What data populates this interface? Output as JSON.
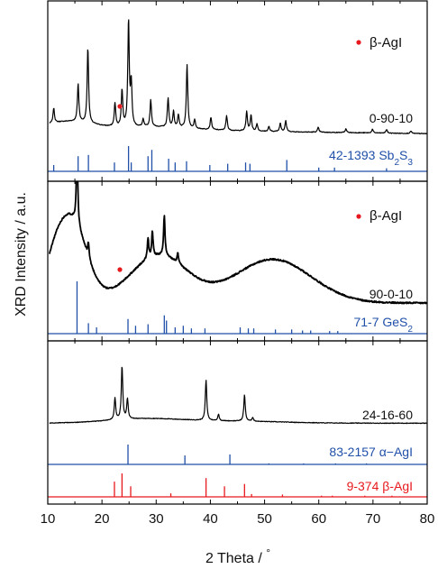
{
  "chart_data": {
    "type": "line",
    "xlabel": "2 Theta / °",
    "ylabel": "XRD Intensity / a.u.",
    "xlim": [
      10,
      80
    ],
    "x_ticks": [
      10,
      20,
      30,
      40,
      50,
      60,
      70,
      80
    ],
    "x_tick_labels": [
      "10",
      "20",
      "30",
      "40",
      "50",
      "60",
      "70",
      "80"
    ],
    "panels": [
      {
        "name": "0-90-10",
        "legend": "β-AgI",
        "legend_position": "top-right",
        "measured": {
          "label": "0-90-10",
          "color": "#000000",
          "peaks": [
            [
              11.1,
              1.2
            ],
            [
              15.6,
              3.1
            ],
            [
              17.4,
              6.2
            ],
            [
              22.4,
              1.9
            ],
            [
              23.7,
              3.0
            ],
            [
              24.9,
              8.7
            ],
            [
              25.4,
              3.5
            ],
            [
              27.6,
              0.6
            ],
            [
              29.0,
              2.2
            ],
            [
              32.2,
              2.4
            ],
            [
              33.2,
              1.3
            ],
            [
              34.1,
              1.0
            ],
            [
              35.7,
              5.2
            ],
            [
              37.1,
              0.7
            ],
            [
              40.1,
              1.0
            ],
            [
              43.0,
              1.2
            ],
            [
              46.7,
              1.6
            ],
            [
              47.5,
              1.3
            ],
            [
              48.6,
              0.6
            ],
            [
              50.8,
              0.4
            ],
            [
              52.9,
              0.7
            ],
            [
              53.9,
              0.9
            ],
            [
              59.9,
              0.4
            ],
            [
              65.0,
              0.3
            ],
            [
              69.9,
              0.3
            ],
            [
              72.5,
              0.3
            ],
            [
              77.0,
              0.2
            ]
          ],
          "marked_peaks_x": [
            23.7
          ]
        },
        "reference": {
          "label": "42-1393 Sb2S3",
          "color": "#2050a8",
          "lines": [
            [
              11.1,
              0.25
            ],
            [
              15.6,
              0.6
            ],
            [
              17.5,
              0.65
            ],
            [
              22.3,
              0.35
            ],
            [
              24.9,
              1.0
            ],
            [
              25.4,
              0.35
            ],
            [
              28.5,
              0.6
            ],
            [
              29.2,
              0.85
            ],
            [
              32.3,
              0.5
            ],
            [
              33.5,
              0.35
            ],
            [
              35.6,
              0.4
            ],
            [
              39.9,
              0.25
            ],
            [
              43.2,
              0.3
            ],
            [
              46.5,
              0.35
            ],
            [
              47.3,
              0.3
            ],
            [
              54.1,
              0.45
            ],
            [
              60.0,
              0.15
            ],
            [
              62.9,
              0.15
            ],
            [
              72.5,
              0.12
            ]
          ]
        }
      },
      {
        "name": "90-0-10",
        "legend": "β-AgI",
        "legend_position": "top-right",
        "measured": {
          "label": "90-0-10",
          "color": "#000000",
          "peaks": [
            [
              15.4,
              1.6
            ],
            [
              17.5,
              0.3
            ],
            [
              28.5,
              0.4
            ],
            [
              29.3,
              0.5
            ],
            [
              31.5,
              0.8
            ],
            [
              34.0,
              0.2
            ]
          ],
          "marked_peaks_x": [
            23.7
          ]
        },
        "reference": {
          "label": "71-7 GeS2",
          "color": "#2050a8",
          "lines": [
            [
              15.4,
              1.0
            ],
            [
              17.5,
              0.2
            ],
            [
              19.0,
              0.12
            ],
            [
              24.8,
              0.28
            ],
            [
              26.2,
              0.15
            ],
            [
              28.5,
              0.18
            ],
            [
              31.5,
              0.35
            ],
            [
              31.9,
              0.25
            ],
            [
              33.5,
              0.12
            ],
            [
              35.0,
              0.15
            ],
            [
              36.5,
              0.1
            ],
            [
              39.0,
              0.1
            ],
            [
              45.5,
              0.12
            ],
            [
              47.0,
              0.1
            ],
            [
              48.0,
              0.1
            ],
            [
              52.0,
              0.08
            ],
            [
              55.0,
              0.08
            ],
            [
              57.0,
              0.06
            ],
            [
              58.5,
              0.06
            ],
            [
              62.0,
              0.05
            ],
            [
              63.5,
              0.05
            ]
          ]
        }
      },
      {
        "name": "24-16-60",
        "measured": {
          "label": "24-16-60",
          "color": "#000000",
          "peaks": [
            [
              22.4,
              1.7
            ],
            [
              23.7,
              4.2
            ],
            [
              24.7,
              1.6
            ],
            [
              39.2,
              3.2
            ],
            [
              41.5,
              0.5
            ],
            [
              46.3,
              2.1
            ],
            [
              47.8,
              0.3
            ]
          ]
        },
        "references": [
          {
            "label": "83-2157 α−AgI",
            "color": "#2050a8",
            "lines": [
              [
                24.8,
                1.0
              ],
              [
                35.3,
                0.45
              ],
              [
                43.6,
                0.5
              ],
              [
                50.8,
                0.05
              ],
              [
                57.2,
                0.05
              ],
              [
                63.1,
                0.05
              ],
              [
                68.8,
                0.05
              ]
            ]
          },
          {
            "label": "9-374 β-AgI",
            "color": "#e8191e",
            "lines": [
              [
                22.3,
                0.65
              ],
              [
                23.7,
                1.0
              ],
              [
                25.3,
                0.45
              ],
              [
                32.7,
                0.15
              ],
              [
                39.2,
                0.8
              ],
              [
                42.6,
                0.45
              ],
              [
                46.3,
                0.55
              ],
              [
                47.6,
                0.12
              ],
              [
                53.3,
                0.1
              ],
              [
                60.5,
                0.05
              ],
              [
                62.5,
                0.05
              ],
              [
                68.5,
                0.05
              ],
              [
                73.5,
                0.05
              ]
            ]
          }
        ]
      }
    ]
  }
}
